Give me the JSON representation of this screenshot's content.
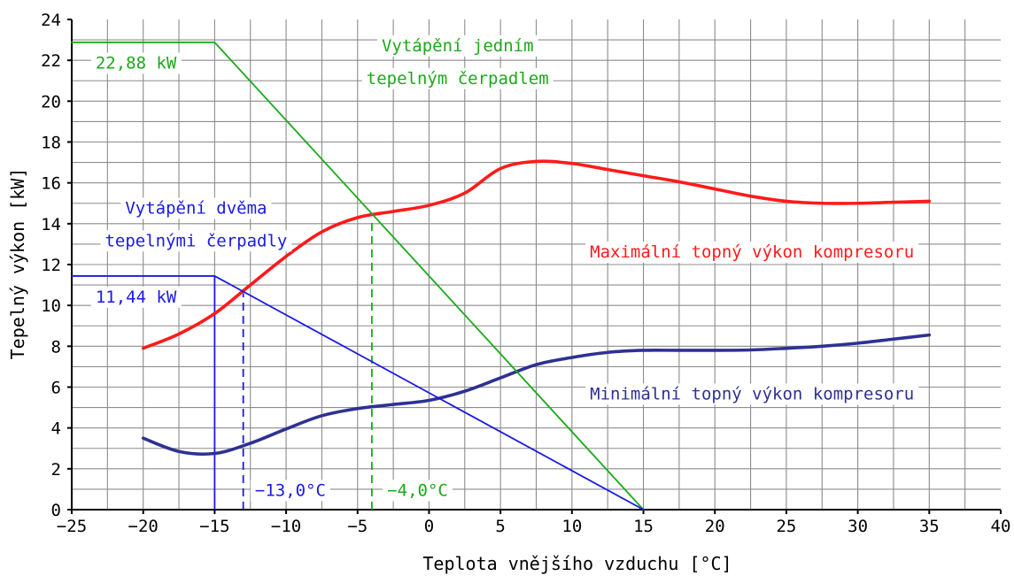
{
  "chart_data": {
    "type": "line",
    "xlabel": "Teplota vnějšího vzduchu [°C]",
    "ylabel": "Tepelný výkon [kW]",
    "xlim": [
      -25,
      40
    ],
    "ylim": [
      0,
      24
    ],
    "x_ticks": [
      "-25",
      "-20",
      "-15",
      "-10",
      "-5",
      "0",
      "5",
      "10",
      "15",
      "20",
      "25",
      "30",
      "35",
      "40"
    ],
    "y_ticks": [
      "0",
      "2",
      "4",
      "6",
      "8",
      "10",
      "12",
      "14",
      "16",
      "18",
      "20",
      "22",
      "24"
    ],
    "grid": true,
    "colors": {
      "max_curve": "#ff1a1a",
      "min_curve": "#2e3192",
      "single_pump": "#1aaa1a",
      "two_pumps": "#1a1ae6",
      "grid": "#8c8c8c"
    },
    "series": [
      {
        "name": "Maximální topný výkon kompresoru",
        "x": [
          -20,
          -17.5,
          -15,
          -12.5,
          -10,
          -7.5,
          -5,
          -2.5,
          0,
          2.5,
          5,
          7.5,
          10,
          12.5,
          15,
          17.5,
          20,
          22.5,
          25,
          27.5,
          30,
          32.5,
          35
        ],
        "y": [
          7.9,
          8.6,
          9.6,
          11.0,
          12.4,
          13.6,
          14.3,
          14.6,
          14.9,
          15.5,
          16.7,
          17.05,
          16.95,
          16.65,
          16.35,
          16.05,
          15.7,
          15.35,
          15.1,
          15.0,
          15.0,
          15.05,
          15.1
        ]
      },
      {
        "name": "Minimální topný výkon kompresoru",
        "x": [
          -20,
          -17.5,
          -15,
          -12.5,
          -10,
          -7.5,
          -5,
          -2.5,
          0,
          2.5,
          5,
          7.5,
          10,
          12.5,
          15,
          17.5,
          20,
          22.5,
          25,
          27.5,
          30,
          32.5,
          35
        ],
        "y": [
          3.5,
          2.85,
          2.75,
          3.25,
          3.95,
          4.6,
          4.95,
          5.15,
          5.35,
          5.8,
          6.45,
          7.1,
          7.45,
          7.7,
          7.8,
          7.8,
          7.8,
          7.82,
          7.9,
          8.0,
          8.15,
          8.35,
          8.55
        ]
      },
      {
        "name": "Vytápění jedním tepelným čerpadlem",
        "x": [
          -25,
          -15,
          15
        ],
        "y": [
          22.88,
          22.88,
          0
        ]
      },
      {
        "name": "Vytápění dvěma tepelnými čerpadly",
        "x": [
          -25,
          -15,
          15
        ],
        "y": [
          11.44,
          11.44,
          0
        ]
      }
    ],
    "annotations": [
      {
        "text": "22,88 kW",
        "x": -20.5,
        "y": 21.9,
        "color": "single_pump"
      },
      {
        "text": "Vytápění jedním",
        "x": 2,
        "y": 22.75,
        "color": "single_pump"
      },
      {
        "text": "tepelným čerpadlem",
        "x": 2,
        "y": 21.15,
        "color": "single_pump"
      },
      {
        "text": "Vytápění dvěma",
        "x": -16.3,
        "y": 14.8,
        "color": "two_pumps"
      },
      {
        "text": "tepelnými čerpadly",
        "x": -16.3,
        "y": 13.2,
        "color": "two_pumps"
      },
      {
        "text": "11,44 kW",
        "x": -20.5,
        "y": 10.45,
        "color": "two_pumps"
      },
      {
        "text": "Maximální topný výkon kompresoru",
        "x": 22.6,
        "y": 12.65,
        "color": "max_curve"
      },
      {
        "text": "Minimální topný výkon kompresoru",
        "x": 22.6,
        "y": 5.7,
        "color": "min_curve"
      },
      {
        "text": "-13,0°C",
        "x": -9.7,
        "y": 0.98,
        "color": "two_pumps"
      },
      {
        "text": "-4,0°C",
        "x": -0.8,
        "y": 0.98,
        "color": "single_pump"
      }
    ],
    "markers": [
      {
        "x": -15,
        "y_from": 0,
        "y_to": 11.44,
        "dashed": false,
        "color": "two_pumps"
      },
      {
        "x": -13,
        "y_from": 0,
        "y_to": 10.6,
        "dashed": true,
        "color": "two_pumps"
      },
      {
        "x": -4,
        "y_from": 0,
        "y_to": 14.3,
        "dashed": true,
        "color": "single_pump"
      }
    ]
  }
}
